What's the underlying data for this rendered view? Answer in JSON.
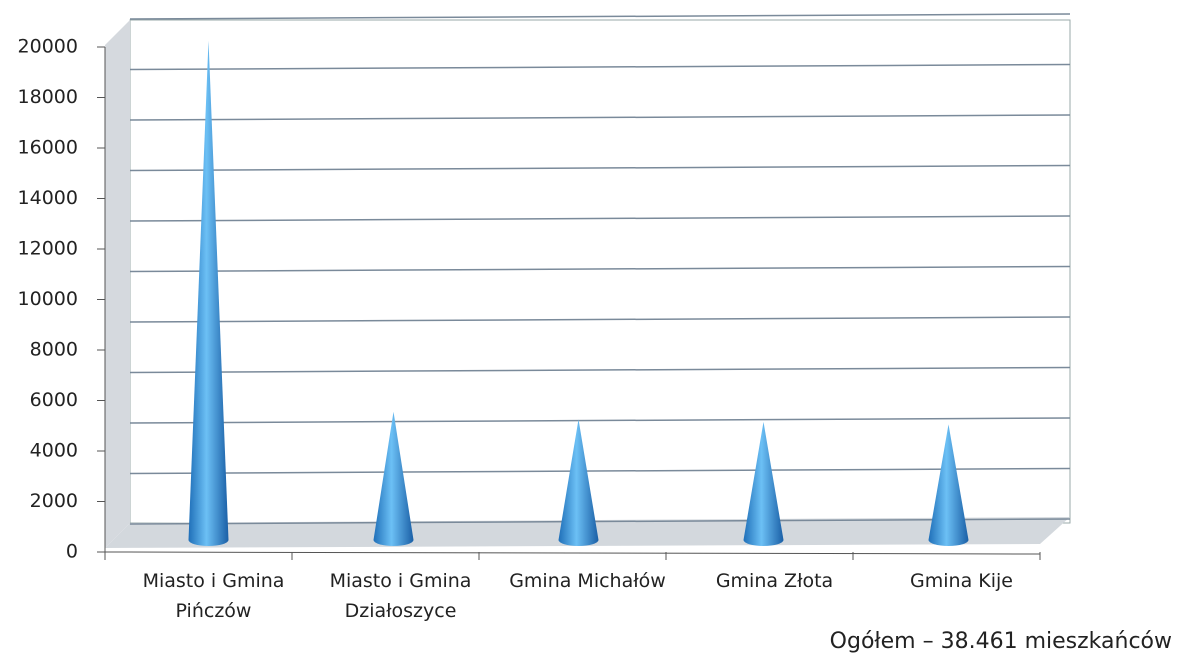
{
  "chart_data": {
    "type": "cone",
    "categories": [
      "Miasto i Gmina Pińczów",
      "Miasto i Gmina Działoszyce",
      "Gmina Michałów",
      "Gmina Złota",
      "Gmina Kije"
    ],
    "values": [
      19700,
      5000,
      4700,
      4600,
      4500
    ],
    "color": "#3a8fd8",
    "ylim": [
      0,
      20000
    ],
    "yticks": [
      0,
      2000,
      4000,
      6000,
      8000,
      10000,
      12000,
      14000,
      16000,
      18000,
      20000
    ],
    "grid": true,
    "annotation": "Ogółem – 38.461 mieszkańców"
  }
}
